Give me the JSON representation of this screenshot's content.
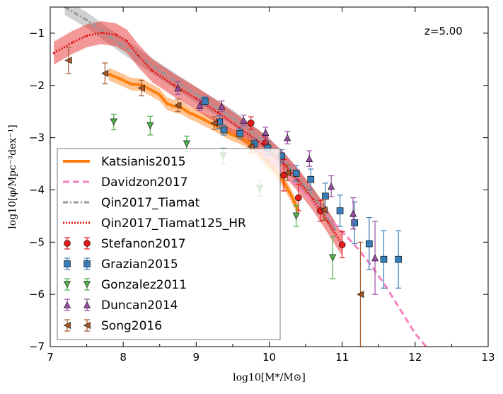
{
  "chart_data": {
    "type": "scatter",
    "title": "",
    "xlabel": "log10[M*/M⊙]",
    "ylabel": "log10[φ/Mpc⁻³dex⁻¹]",
    "xlim": [
      7,
      13
    ],
    "ylim": [
      -7,
      -0.5
    ],
    "xticks": [
      "7",
      "8",
      "9",
      "10",
      "11",
      "12",
      "13"
    ],
    "yticks": [
      "−1",
      "−2",
      "−3",
      "−4",
      "−5",
      "−6",
      "−7"
    ],
    "annotation": "z=5.00",
    "grid": false,
    "legend_position": "lower-left",
    "colors": {
      "Katsianis2015": "#ff7f0e",
      "Davidzon2017": "#f781bf",
      "Qin2017_Tiamat": "#999999",
      "Qin2017_Tiamat125_HR": "#e41a1c",
      "Stefanon2017": "#e41a1c",
      "Grazian2015": "#377eb8",
      "Gonzalez2011": "#4daf4a",
      "Duncan2014": "#984ea3",
      "Song2016": "#a65628"
    },
    "lines": [
      {
        "name": "Katsianis2015",
        "style": "solid",
        "x": [
          7.8,
          8.0,
          8.1,
          8.25,
          8.4,
          8.5,
          8.6,
          8.7,
          8.8,
          8.9,
          9.0,
          9.1,
          9.2,
          9.3,
          9.4,
          9.5,
          9.6,
          9.7,
          9.8,
          9.9,
          10.0,
          10.1,
          10.2,
          10.3,
          10.35,
          10.4
        ],
        "y": [
          -1.78,
          -1.9,
          -1.97,
          -1.99,
          -2.1,
          -2.18,
          -2.35,
          -2.4,
          -2.43,
          -2.52,
          -2.58,
          -2.65,
          -2.72,
          -2.8,
          -2.88,
          -2.95,
          -3.0,
          -3.08,
          -3.2,
          -3.35,
          -3.5,
          -3.65,
          -3.85,
          -4.1,
          -4.25,
          -4.4
        ],
        "band": 0.12
      },
      {
        "name": "Davidzon2017",
        "style": "dashed",
        "x": [
          9.8,
          10.0,
          10.2,
          10.4,
          10.6,
          10.8,
          11.0,
          11.2,
          11.4,
          11.6,
          11.8,
          12.0,
          12.15
        ],
        "y": [
          -3.2,
          -3.42,
          -3.68,
          -3.95,
          -4.22,
          -4.5,
          -4.8,
          -5.1,
          -5.45,
          -5.85,
          -6.3,
          -6.75,
          -7.0
        ]
      },
      {
        "name": "Qin2017_Tiamat",
        "style": "dashdot",
        "x": [
          7.2,
          7.5,
          8.0,
          8.5,
          9.0,
          9.5,
          10.0,
          10.3,
          10.5,
          10.7,
          10.9
        ],
        "y": [
          -0.5,
          -0.75,
          -1.25,
          -1.72,
          -2.18,
          -2.62,
          -3.15,
          -3.6,
          -3.95,
          -4.3,
          -4.75
        ],
        "band": 0.15
      },
      {
        "name": "Qin2017_Tiamat125_HR",
        "style": "dotted",
        "x": [
          7.05,
          7.3,
          7.5,
          7.7,
          7.9,
          8.05,
          8.2,
          8.4,
          8.7,
          9.0,
          9.3,
          9.6,
          9.9,
          10.2,
          10.4,
          10.6,
          10.8,
          11.0
        ],
        "y": [
          -1.38,
          -1.18,
          -1.05,
          -0.99,
          -1.03,
          -1.15,
          -1.42,
          -1.72,
          -2.0,
          -2.25,
          -2.52,
          -2.82,
          -3.12,
          -3.5,
          -3.82,
          -4.18,
          -4.6,
          -5.05
        ],
        "band": 0.22
      }
    ],
    "series": [
      {
        "name": "Stefanon2017",
        "marker": "circle",
        "points": [
          {
            "x": 9.75,
            "y": -2.72,
            "err": 0.12
          },
          {
            "x": 9.95,
            "y": -3.1,
            "err": 0.12
          },
          {
            "x": 10.2,
            "y": -3.72,
            "err": 0.3
          },
          {
            "x": 10.4,
            "y": -4.15,
            "err": 0.25
          },
          {
            "x": 10.7,
            "y": -4.4,
            "err": 0.2
          },
          {
            "x": 11.0,
            "y": -5.05,
            "err": 0.25
          }
        ]
      },
      {
        "name": "Grazian2015",
        "marker": "square",
        "points": [
          {
            "x": 9.12,
            "y": -2.3,
            "err": 0.08
          },
          {
            "x": 9.32,
            "y": -2.7,
            "err": 0.12
          },
          {
            "x": 9.38,
            "y": -2.85,
            "err": 0.1
          },
          {
            "x": 9.6,
            "y": -2.92,
            "err": 0.1
          },
          {
            "x": 9.8,
            "y": -3.12,
            "err": 0.1
          },
          {
            "x": 9.98,
            "y": -3.2,
            "err": 0.12
          },
          {
            "x": 10.17,
            "y": -3.35,
            "err": 0.12
          },
          {
            "x": 10.37,
            "y": -3.68,
            "err": 0.15
          },
          {
            "x": 10.57,
            "y": -3.8,
            "err": 0.2
          },
          {
            "x": 10.77,
            "y": -4.12,
            "err": 0.25
          },
          {
            "x": 10.97,
            "y": -4.4,
            "err": 0.3
          },
          {
            "x": 11.17,
            "y": -4.63,
            "err": 0.4
          },
          {
            "x": 11.37,
            "y": -5.03,
            "err": 0.5
          },
          {
            "x": 11.57,
            "y": -5.33,
            "err": 0.55
          },
          {
            "x": 11.77,
            "y": -5.33,
            "err": 0.55
          }
        ]
      },
      {
        "name": "Gonzalez2011",
        "marker": "triangle-down",
        "points": [
          {
            "x": 7.87,
            "y": -2.7,
            "err": 0.15
          },
          {
            "x": 8.37,
            "y": -2.77,
            "err": 0.18
          },
          {
            "x": 8.87,
            "y": -3.12,
            "err": 0.15
          },
          {
            "x": 9.37,
            "y": -3.35,
            "err": 0.15
          },
          {
            "x": 9.87,
            "y": -3.97,
            "err": 0.15
          },
          {
            "x": 10.37,
            "y": -4.5,
            "err": 0.2
          },
          {
            "x": 10.87,
            "y": -5.3,
            "err": 0.4
          }
        ]
      },
      {
        "name": "Duncan2014",
        "marker": "triangle-up",
        "points": [
          {
            "x": 8.75,
            "y": -2.05,
            "err": 0.12
          },
          {
            "x": 9.05,
            "y": -2.38,
            "err": 0.1
          },
          {
            "x": 9.35,
            "y": -2.4,
            "err": 0.1
          },
          {
            "x": 9.65,
            "y": -2.67,
            "err": 0.1
          },
          {
            "x": 9.95,
            "y": -2.9,
            "err": 0.1
          },
          {
            "x": 10.25,
            "y": -3.0,
            "err": 0.12
          },
          {
            "x": 10.55,
            "y": -3.4,
            "err": 0.15
          },
          {
            "x": 10.85,
            "y": -3.93,
            "err": 0.2
          },
          {
            "x": 11.15,
            "y": -4.45,
            "err": 0.3
          },
          {
            "x": 11.45,
            "y": -5.3,
            "err": 0.7
          }
        ]
      },
      {
        "name": "Song2016",
        "marker": "triangle-left",
        "points": [
          {
            "x": 7.25,
            "y": -1.52,
            "err": 0.25
          },
          {
            "x": 7.75,
            "y": -1.77,
            "err": 0.2
          },
          {
            "x": 8.25,
            "y": -2.05,
            "err": 0.15
          },
          {
            "x": 8.75,
            "y": -2.38,
            "err": 0.12
          },
          {
            "x": 9.25,
            "y": -2.72,
            "err": 0.12
          },
          {
            "x": 9.75,
            "y": -3.17,
            "err": 0.12
          },
          {
            "x": 10.25,
            "y": -3.67,
            "err": 0.15
          },
          {
            "x": 10.75,
            "y": -4.38,
            "err": 0.2
          },
          {
            "x": 11.25,
            "y": -6.0,
            "err": 1.0
          }
        ]
      }
    ],
    "legend": [
      {
        "label": "Katsianis2015",
        "kind": "line",
        "style": "solid"
      },
      {
        "label": "Davidzon2017",
        "kind": "line",
        "style": "dashed"
      },
      {
        "label": "Qin2017_Tiamat",
        "kind": "line",
        "style": "dashdot"
      },
      {
        "label": "Qin2017_Tiamat125_HR",
        "kind": "line",
        "style": "dotted"
      },
      {
        "label": "Stefanon2017",
        "kind": "marker",
        "marker": "circle"
      },
      {
        "label": "Grazian2015",
        "kind": "marker",
        "marker": "square"
      },
      {
        "label": "Gonzalez2011",
        "kind": "marker",
        "marker": "triangle-down"
      },
      {
        "label": "Duncan2014",
        "kind": "marker",
        "marker": "triangle-up"
      },
      {
        "label": "Song2016",
        "kind": "marker",
        "marker": "triangle-left"
      }
    ]
  }
}
